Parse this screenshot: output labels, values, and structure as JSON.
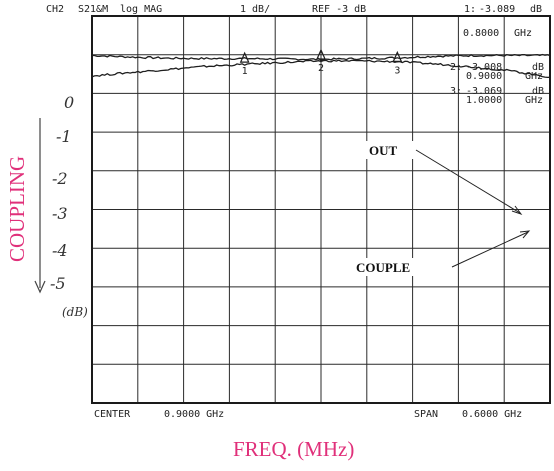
{
  "header": {
    "channel": "CH2",
    "measurement": "S21&M",
    "format": "log MAG",
    "scale": "1 dB/",
    "reference": "REF -3 dB"
  },
  "markers": [
    {
      "label": "1:",
      "value": "-3.089",
      "unit": "dB",
      "freq": "0.8000",
      "freq_unit": "GHz"
    },
    {
      "label": "2:",
      "value": "-3.008",
      "unit": "dB",
      "freq": "0.9000",
      "freq_unit": "GHz"
    },
    {
      "label": "3:",
      "value": "-3.069",
      "unit": "dB",
      "freq": "1.0000",
      "freq_unit": "GHz"
    }
  ],
  "footer": {
    "center_label": "CENTER",
    "center_value": "0.9000 GHz",
    "span_label": "SPAN",
    "span_value": "0.6000 GHz"
  },
  "annotations": {
    "y_axis_title": "COUPLING",
    "y_ticks": [
      "0",
      "-1",
      "-2",
      "-3",
      "-4",
      "-5"
    ],
    "y_unit": "(dB)",
    "out_label": "OUT",
    "couple_label": "COUPLE",
    "x_axis_title": "FREQ. (MHz)"
  },
  "chart_data": {
    "type": "line",
    "title": "",
    "xlabel": "FREQ. (MHz)",
    "ylabel": "COUPLING",
    "xlim": [
      600,
      1200
    ],
    "ylim": [
      -12,
      -2
    ],
    "grid": true,
    "series": [
      {
        "name": "OUT",
        "x": [
          600,
          650,
          700,
          750,
          800,
          850,
          900,
          950,
          1000,
          1050,
          1100,
          1150,
          1200
        ],
        "y": [
          -3.02,
          -3.06,
          -3.09,
          -3.1,
          -3.1,
          -3.11,
          -3.12,
          -3.1,
          -3.08,
          -3.04,
          -3.02,
          -3.02,
          -3.02
        ]
      },
      {
        "name": "COUPLE",
        "x": [
          600,
          650,
          700,
          750,
          800,
          850,
          900,
          950,
          1000,
          1050,
          1100,
          1150,
          1200
        ],
        "y": [
          -3.55,
          -3.46,
          -3.38,
          -3.3,
          -3.25,
          -3.2,
          -3.16,
          -3.16,
          -3.18,
          -3.24,
          -3.32,
          -3.42,
          -3.58
        ]
      }
    ],
    "marker_points": [
      {
        "label": "1",
        "x": 800,
        "y": -3.089
      },
      {
        "label": "2",
        "x": 900,
        "y": -3.008
      },
      {
        "label": "3",
        "x": 1000,
        "y": -3.069
      }
    ]
  }
}
